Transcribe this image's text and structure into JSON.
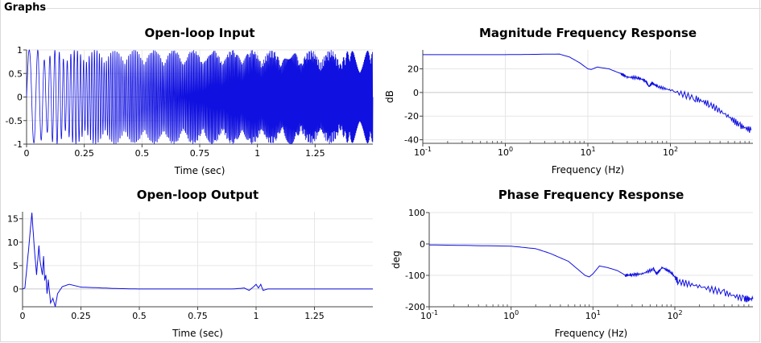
{
  "panel": {
    "title": "Graphs"
  },
  "colors": {
    "series": "#1010e0",
    "grid": "#e6e6e6",
    "zero": "#c8c8c8"
  },
  "chart_data": [
    {
      "id": "input",
      "type": "line",
      "title": "Open-loop Input",
      "xlabel": "Time (sec)",
      "ylabel": "",
      "xlim": [
        0,
        1.5
      ],
      "ylim": [
        -1,
        1
      ],
      "xticks": [
        {
          "v": 0,
          "t": "0"
        },
        {
          "v": 0.25,
          "t": "0.25"
        },
        {
          "v": 0.5,
          "t": "0.5"
        },
        {
          "v": 0.75,
          "t": "0.75"
        },
        {
          "v": 1,
          "t": "1"
        },
        {
          "v": 1.25,
          "t": "1.25"
        }
      ],
      "yticks": [
        {
          "v": 1,
          "t": "1"
        },
        {
          "v": 0.5,
          "t": "0.5"
        },
        {
          "v": 0,
          "t": "0"
        },
        {
          "v": -0.5,
          "t": "-0.5"
        },
        {
          "v": -1,
          "t": "-1"
        }
      ],
      "signal": {
        "kind": "chirp",
        "amplitude": 1
      }
    },
    {
      "id": "output",
      "type": "line",
      "title": "Open-loop Output",
      "xlabel": "Time (sec)",
      "ylabel": "",
      "xlim": [
        0,
        1.5
      ],
      "ylim": [
        -3.8,
        16.5
      ],
      "xticks": [
        {
          "v": 0,
          "t": "0"
        },
        {
          "v": 0.25,
          "t": "0.25"
        },
        {
          "v": 0.5,
          "t": "0.5"
        },
        {
          "v": 0.75,
          "t": "0.75"
        },
        {
          "v": 1,
          "t": "1"
        },
        {
          "v": 1.25,
          "t": "1.25"
        }
      ],
      "yticks": [
        {
          "v": 15,
          "t": "15"
        },
        {
          "v": 10,
          "t": "10"
        },
        {
          "v": 5,
          "t": "5"
        },
        {
          "v": 0,
          "t": "0"
        }
      ],
      "x": [
        0,
        0.01,
        0.025,
        0.04,
        0.05,
        0.06,
        0.07,
        0.075,
        0.085,
        0.09,
        0.095,
        0.1,
        0.105,
        0.11,
        0.12,
        0.13,
        0.14,
        0.15,
        0.17,
        0.2,
        0.25,
        0.3,
        0.4,
        0.5,
        0.7,
        0.9,
        0.95,
        0.97,
        0.99,
        1.0,
        1.01,
        1.02,
        1.03,
        1.05,
        1.1,
        1.3,
        1.5
      ],
      "y": [
        0,
        0.2,
        8,
        16.3,
        9,
        3,
        9.3,
        6,
        3,
        7,
        2,
        3,
        -1,
        2,
        -3,
        -2,
        -3.8,
        -1,
        0.5,
        1,
        0.4,
        0.3,
        0.1,
        0,
        0,
        0,
        0.2,
        -0.3,
        0.5,
        1,
        0.2,
        1,
        -0.3,
        0,
        0,
        0,
        0
      ]
    },
    {
      "id": "magnitude",
      "type": "line",
      "title": "Magnitude Frequency Response",
      "xlabel": "Frequency (Hz)",
      "ylabel": "dB",
      "xscale": "log",
      "xlim": [
        0.1,
        1000
      ],
      "ylim": [
        -43,
        36
      ],
      "xticks": [
        {
          "v": 0.1,
          "b": "10",
          "e": "-1"
        },
        {
          "v": 1,
          "b": "10",
          "e": "0"
        },
        {
          "v": 10,
          "b": "10",
          "e": "1"
        },
        {
          "v": 100,
          "b": "10",
          "e": "2"
        }
      ],
      "yticks": [
        {
          "v": 20,
          "t": "20"
        },
        {
          "v": 0,
          "t": "0"
        },
        {
          "v": -20,
          "t": "-20"
        },
        {
          "v": -40,
          "t": "-40"
        }
      ],
      "x": [
        0.1,
        1,
        4.5,
        6,
        8,
        10,
        11,
        13,
        18,
        25,
        30,
        40,
        50,
        55,
        60,
        70,
        100,
        200,
        300,
        500,
        700,
        950
      ],
      "y": [
        32,
        32,
        32.5,
        30,
        25,
        20,
        19.5,
        21.5,
        20,
        16,
        13,
        12.5,
        10,
        5,
        8,
        5,
        2,
        -5,
        -10,
        -20,
        -28,
        -32
      ]
    },
    {
      "id": "phase",
      "type": "line",
      "title": "Phase Frequency Response",
      "xlabel": "Frequency (Hz)",
      "ylabel": "deg",
      "xscale": "log",
      "xlim": [
        0.1,
        900
      ],
      "ylim": [
        -200,
        100
      ],
      "xticks": [
        {
          "v": 0.1,
          "b": "10",
          "e": "-1"
        },
        {
          "v": 1,
          "b": "10",
          "e": "0"
        },
        {
          "v": 10,
          "b": "10",
          "e": "1"
        },
        {
          "v": 100,
          "b": "10",
          "e": "2"
        }
      ],
      "yticks": [
        {
          "v": 100,
          "t": "100"
        },
        {
          "v": 0,
          "t": "0"
        },
        {
          "v": -100,
          "t": "-100"
        },
        {
          "v": -200,
          "t": "-200"
        }
      ],
      "x": [
        0.1,
        1,
        2,
        3,
        5,
        8,
        9,
        10,
        12,
        15,
        20,
        25,
        30,
        40,
        55,
        60,
        70,
        90,
        110,
        200,
        400,
        700,
        900
      ],
      "y": [
        -3,
        -7,
        -15,
        -30,
        -55,
        -100,
        -105,
        -95,
        -70,
        -75,
        -85,
        -100,
        -98,
        -95,
        -80,
        -95,
        -75,
        -90,
        -120,
        -135,
        -155,
        -175,
        -175
      ]
    }
  ]
}
